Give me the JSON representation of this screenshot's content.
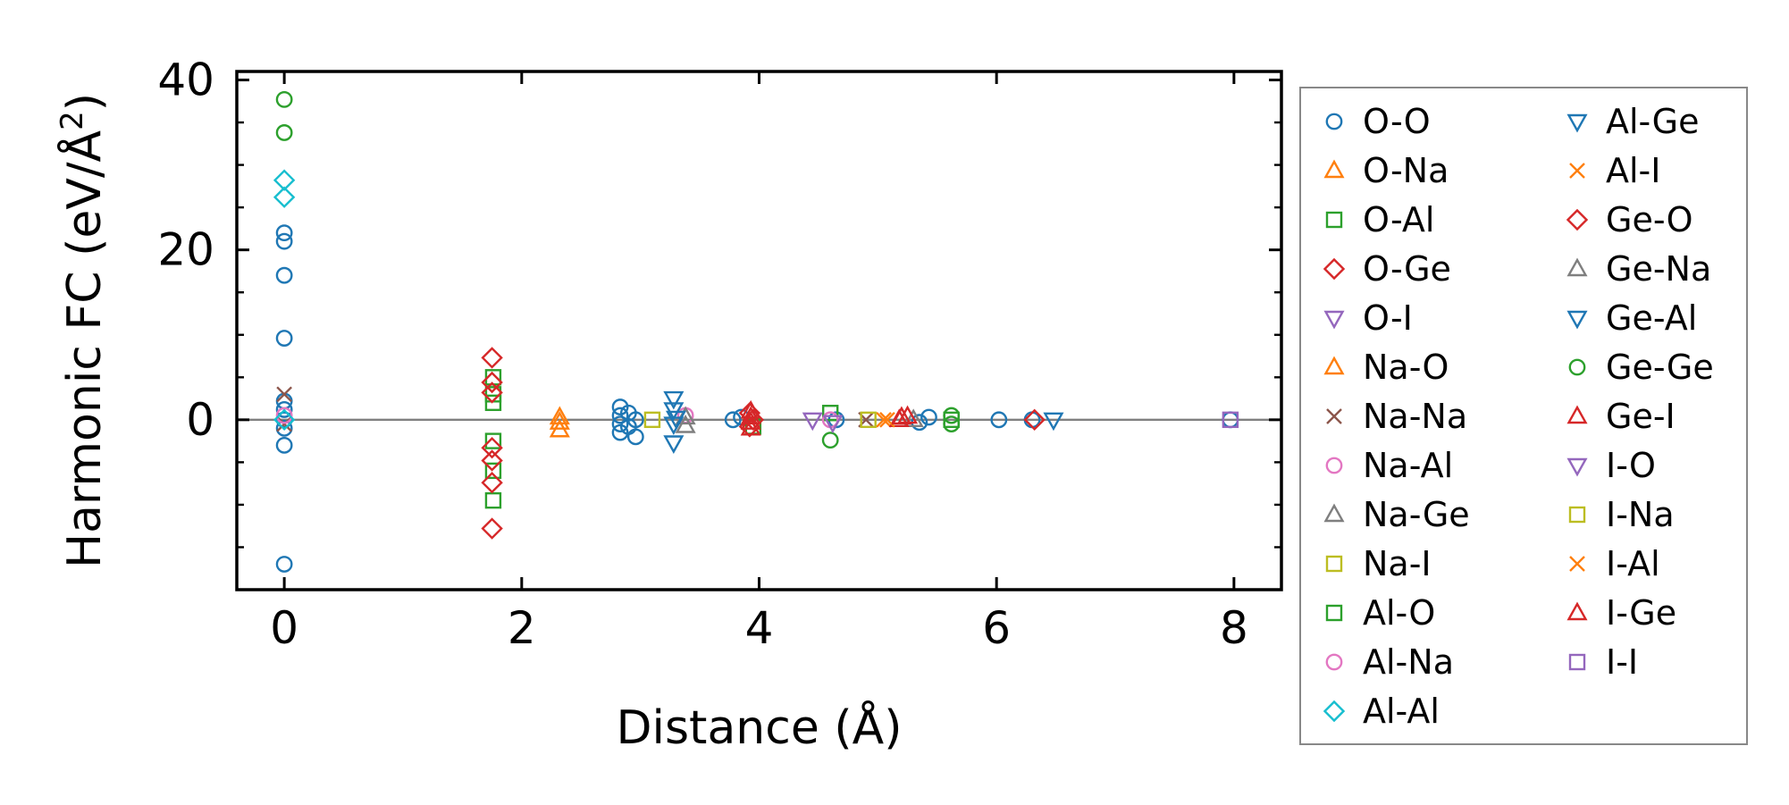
{
  "chart_data": {
    "type": "scatter",
    "xlabel": "Distance (Å)",
    "ylabel": "Harmonic FC (eV/Å²)",
    "ylabel_main": "Harmonic FC (eV/Å",
    "ylabel_sup": "2",
    "ylabel_end": ")",
    "xlim": [
      -0.4,
      8.4
    ],
    "ylim": [
      -20,
      41
    ],
    "x_ticks": [
      0,
      2,
      4,
      6,
      8
    ],
    "y_ticks": [
      0,
      20,
      40
    ],
    "x_tick_labels": [
      "0",
      "2",
      "4",
      "6",
      "8"
    ],
    "y_tick_labels": [
      "0",
      "20",
      "40"
    ],
    "zero_line": true,
    "grid": false,
    "legend_position": "outside-right",
    "series": [
      {
        "name": "O-O",
        "marker": "circle",
        "color": "#1f77b4",
        "points": [
          [
            0,
            22
          ],
          [
            0,
            21
          ],
          [
            0,
            17
          ],
          [
            0,
            9.6
          ],
          [
            0,
            2.2
          ],
          [
            0,
            1.2
          ],
          [
            0,
            0
          ],
          [
            0,
            -1
          ],
          [
            0,
            -3
          ],
          [
            0,
            -17
          ],
          [
            2.83,
            1.5
          ],
          [
            2.83,
            0.5
          ],
          [
            2.83,
            -0.5
          ],
          [
            2.83,
            -1.5
          ],
          [
            2.9,
            0.8
          ],
          [
            2.9,
            -0.8
          ],
          [
            2.96,
            -2
          ],
          [
            2.96,
            0
          ],
          [
            3.78,
            0
          ],
          [
            3.85,
            0.3
          ],
          [
            4.65,
            0
          ],
          [
            5.35,
            -0.3
          ],
          [
            5.43,
            0.3
          ],
          [
            6.02,
            0
          ],
          [
            6.3,
            0
          ],
          [
            7.97,
            0
          ]
        ]
      },
      {
        "name": "O-Na",
        "marker": "triangle-up",
        "color": "#ff7f0e",
        "points": [
          [
            2.32,
            -1.2
          ],
          [
            2.32,
            -0.3
          ]
        ]
      },
      {
        "name": "O-Al",
        "marker": "square",
        "color": "#2ca02c",
        "points": [
          [
            1.76,
            5
          ],
          [
            1.76,
            3
          ],
          [
            1.76,
            2
          ],
          [
            1.76,
            -2.5
          ],
          [
            1.76,
            -6
          ],
          [
            1.76,
            -9.5
          ],
          [
            3.95,
            -0.8
          ],
          [
            4.6,
            0.8
          ]
        ]
      },
      {
        "name": "O-Ge",
        "marker": "diamond",
        "color": "#d62728",
        "points": [
          [
            1.75,
            7.3
          ],
          [
            1.75,
            4.4
          ],
          [
            1.75,
            3.2
          ],
          [
            1.75,
            -3.3
          ],
          [
            1.75,
            -4.8
          ],
          [
            1.75,
            -7.4
          ],
          [
            1.75,
            -12.8
          ],
          [
            3.95,
            0
          ],
          [
            6.32,
            0
          ]
        ]
      },
      {
        "name": "O-I",
        "marker": "triangle-down",
        "color": "#9467bd",
        "points": [
          [
            4.45,
            0
          ]
        ]
      },
      {
        "name": "Na-O",
        "marker": "triangle-up",
        "color": "#ff7f0e",
        "points": [
          [
            2.32,
            0.3
          ]
        ]
      },
      {
        "name": "Na-Na",
        "marker": "x",
        "color": "#8c564b",
        "points": [
          [
            0,
            3
          ],
          [
            0,
            -0.5
          ],
          [
            4.9,
            0
          ]
        ]
      },
      {
        "name": "Na-Al",
        "marker": "circle",
        "color": "#e377c2",
        "points": [
          [
            0,
            0.5
          ],
          [
            3.38,
            0.5
          ]
        ]
      },
      {
        "name": "Na-Ge",
        "marker": "triangle-up",
        "color": "#7f7f7f",
        "points": [
          [
            3.38,
            -0.7
          ],
          [
            3.38,
            0.3
          ]
        ]
      },
      {
        "name": "Na-I",
        "marker": "square",
        "color": "#bcbd22",
        "points": [
          [
            3.1,
            0
          ]
        ]
      },
      {
        "name": "Al-O",
        "marker": "square",
        "color": "#2ca02c",
        "points": [
          [
            5.62,
            0
          ]
        ]
      },
      {
        "name": "Al-Na",
        "marker": "circle",
        "color": "#e377c2",
        "points": [
          [
            4.6,
            0
          ]
        ]
      },
      {
        "name": "Al-Al",
        "marker": "diamond",
        "color": "#17becf",
        "points": [
          [
            0,
            28.2
          ],
          [
            0,
            26.2
          ],
          [
            0,
            0
          ]
        ]
      },
      {
        "name": "Al-Ge",
        "marker": "triangle-down",
        "color": "#1f77b4",
        "points": [
          [
            3.28,
            2.5
          ],
          [
            3.28,
            1.2
          ],
          [
            3.28,
            -0.5
          ],
          [
            3.28,
            -2.7
          ],
          [
            6.48,
            0
          ]
        ]
      },
      {
        "name": "Al-I",
        "marker": "x",
        "color": "#ff7f0e",
        "points": [
          [
            5.05,
            0
          ]
        ]
      },
      {
        "name": "Ge-O",
        "marker": "diamond",
        "color": "#d62728",
        "points": [
          [
            3.92,
            0.8
          ],
          [
            3.92,
            -0.8
          ]
        ]
      },
      {
        "name": "Ge-Na",
        "marker": "triangle-up",
        "color": "#7f7f7f",
        "points": [
          [
            5.3,
            0
          ]
        ]
      },
      {
        "name": "Ge-Al",
        "marker": "triangle-down",
        "color": "#1f77b4",
        "points": [
          [
            3.3,
            0.2
          ]
        ]
      },
      {
        "name": "Ge-Ge",
        "marker": "circle",
        "color": "#2ca02c",
        "points": [
          [
            0,
            37.7
          ],
          [
            0,
            33.8
          ],
          [
            4.6,
            -2.4
          ],
          [
            5.62,
            0.5
          ],
          [
            5.62,
            -0.5
          ]
        ]
      },
      {
        "name": "Ge-I",
        "marker": "triangle-up",
        "color": "#d62728",
        "points": [
          [
            3.93,
            1
          ],
          [
            3.93,
            0.3
          ],
          [
            3.93,
            -0.3
          ],
          [
            3.93,
            -1
          ],
          [
            5.18,
            0
          ],
          [
            5.25,
            0.4
          ]
        ]
      },
      {
        "name": "I-O",
        "marker": "triangle-down",
        "color": "#9467bd",
        "points": [
          [
            4.62,
            -0.3
          ]
        ]
      },
      {
        "name": "I-Na",
        "marker": "square",
        "color": "#bcbd22",
        "points": [
          [
            4.92,
            0
          ]
        ]
      },
      {
        "name": "I-Al",
        "marker": "x",
        "color": "#ff7f0e",
        "points": [
          [
            5.08,
            0
          ]
        ]
      },
      {
        "name": "I-Ge",
        "marker": "triangle-up",
        "color": "#d62728",
        "points": [
          [
            5.2,
            0.3
          ]
        ]
      },
      {
        "name": "I-I",
        "marker": "square",
        "color": "#9467bd",
        "points": [
          [
            7.97,
            0
          ]
        ]
      }
    ]
  }
}
